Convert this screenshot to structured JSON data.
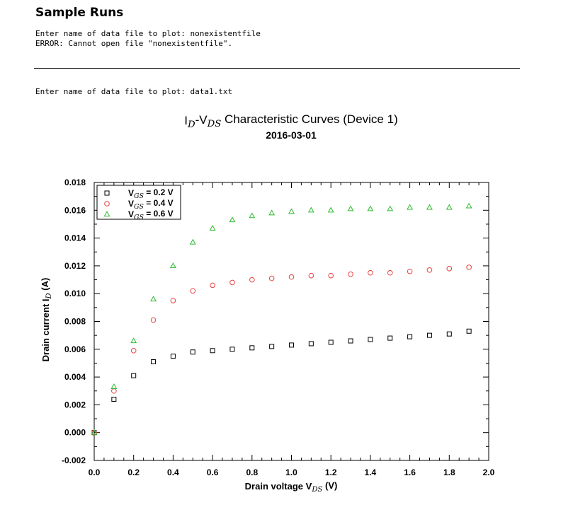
{
  "page": {
    "heading": "Sample Runs",
    "run1": {
      "prompt": "Enter name of data file to plot: nonexistentfile",
      "error": "ERROR: Cannot open file \"nonexistentfile\"."
    },
    "run2": {
      "prompt": "Enter name of data file to plot: data1.txt"
    }
  },
  "chart_data": {
    "type": "scatter",
    "title_parts": [
      {
        "text": "I",
        "style": "normal"
      },
      {
        "text": "D",
        "style": "sub-italic"
      },
      {
        "text": "-V",
        "style": "normal"
      },
      {
        "text": "DS",
        "style": "sub-italic"
      },
      {
        "text": " Characteristic Curves (Device 1)",
        "style": "normal"
      }
    ],
    "subtitle": "2016-03-01",
    "xlabel_parts": [
      {
        "text": "Drain voltage V",
        "style": "normal"
      },
      {
        "text": "DS",
        "style": "sub-italic"
      },
      {
        "text": " (V)",
        "style": "normal"
      }
    ],
    "ylabel_parts": [
      {
        "text": "Drain current I",
        "style": "normal"
      },
      {
        "text": "D",
        "style": "sub-italic"
      },
      {
        "text": " (A)",
        "style": "normal"
      }
    ],
    "xlim": [
      0.0,
      2.0
    ],
    "ylim": [
      -0.002,
      0.018
    ],
    "xticks": [
      0.0,
      0.2,
      0.4,
      0.6,
      0.8,
      1.0,
      1.2,
      1.4,
      1.6,
      1.8,
      2.0
    ],
    "xtick_labels": [
      "0.0",
      "0.2",
      "0.4",
      "0.6",
      "0.8",
      "1.0",
      "1.2",
      "1.4",
      "1.6",
      "1.8",
      "2.0"
    ],
    "yticks": [
      -0.002,
      0.0,
      0.002,
      0.004,
      0.006,
      0.008,
      0.01,
      0.012,
      0.014,
      0.016,
      0.018
    ],
    "ytick_labels": [
      "-0.002",
      "0.000",
      "0.002",
      "0.004",
      "0.006",
      "0.008",
      "0.010",
      "0.012",
      "0.014",
      "0.016",
      "0.018"
    ],
    "grid": false,
    "legend_position": "top-left",
    "x": [
      0.0,
      0.1,
      0.2,
      0.3,
      0.4,
      0.5,
      0.6,
      0.7,
      0.8,
      0.9,
      1.0,
      1.1,
      1.2,
      1.3,
      1.4,
      1.5,
      1.6,
      1.7,
      1.8,
      1.9
    ],
    "series": [
      {
        "name": "VGS = 0.2 V",
        "label_parts": [
          {
            "text": "V",
            "style": "normal"
          },
          {
            "text": "GS",
            "style": "sub-italic"
          },
          {
            "text": " = 0.2 V",
            "style": "normal"
          }
        ],
        "marker": "square",
        "color": "#000000",
        "values": [
          0.0,
          0.0024,
          0.0041,
          0.0051,
          0.0055,
          0.0058,
          0.0059,
          0.006,
          0.0061,
          0.0062,
          0.0063,
          0.0064,
          0.0065,
          0.0066,
          0.0067,
          0.0068,
          0.0069,
          0.007,
          0.0071,
          0.0073
        ]
      },
      {
        "name": "VGS = 0.4 V",
        "label_parts": [
          {
            "text": "V",
            "style": "normal"
          },
          {
            "text": "GS",
            "style": "sub-italic"
          },
          {
            "text": " = 0.4 V",
            "style": "normal"
          }
        ],
        "marker": "circle",
        "color": "#e8413c",
        "values": [
          0.0,
          0.003,
          0.0059,
          0.0081,
          0.0095,
          0.0102,
          0.0106,
          0.0108,
          0.011,
          0.0111,
          0.0112,
          0.0113,
          0.0113,
          0.0114,
          0.0115,
          0.0115,
          0.0116,
          0.0117,
          0.0118,
          0.0119
        ]
      },
      {
        "name": "VGS = 0.6 V",
        "label_parts": [
          {
            "text": "V",
            "style": "normal"
          },
          {
            "text": "GS",
            "style": "sub-italic"
          },
          {
            "text": " = 0.6 V",
            "style": "normal"
          }
        ],
        "marker": "triangle",
        "color": "#2dbb2d",
        "values": [
          0.0,
          0.0033,
          0.0066,
          0.0096,
          0.012,
          0.0137,
          0.0147,
          0.0153,
          0.0156,
          0.0158,
          0.0159,
          0.016,
          0.016,
          0.0161,
          0.0161,
          0.0161,
          0.0162,
          0.0162,
          0.0162,
          0.0163
        ]
      }
    ]
  }
}
